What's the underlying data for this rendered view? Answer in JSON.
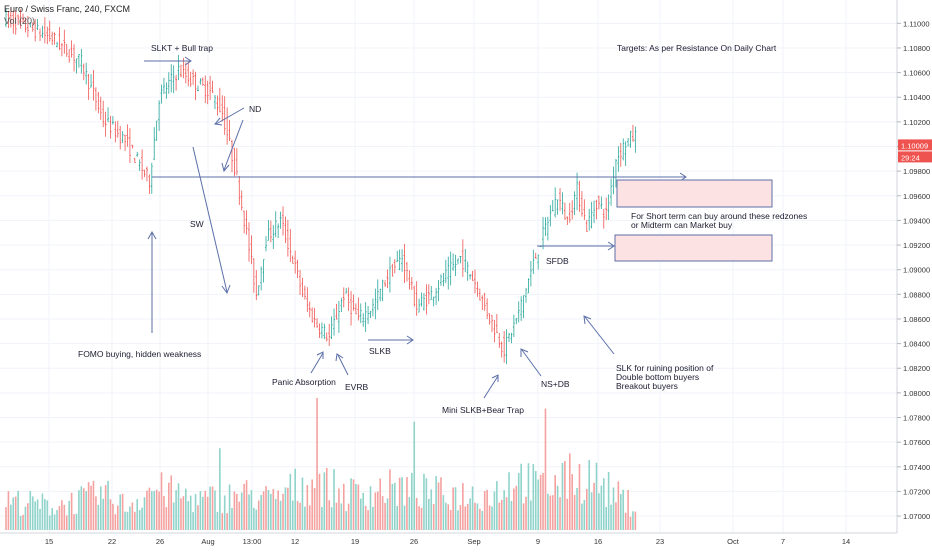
{
  "header": {
    "symbol_line": "Euro / Swiss Franc, 240, FXCM",
    "volume_indicator": "Vol (20)"
  },
  "price_label": {
    "last": "1.10009",
    "countdown": "29:24",
    "last_color": "#ef5350",
    "countdown_color": "#ef5350"
  },
  "chart_data": {
    "type": "candlestick",
    "title": "",
    "x_ticks": [
      "15",
      "22",
      "26",
      "Aug",
      "13:00",
      "12",
      "19",
      "26",
      "Sep",
      "9",
      "16",
      "23",
      "Oct",
      "7",
      "14"
    ],
    "y_ticks": [
      "1.11000",
      "1.10800",
      "1.10600",
      "1.10400",
      "1.10200",
      "1.10000",
      "1.09800",
      "1.09600",
      "1.09400",
      "1.09200",
      "1.09000",
      "1.08800",
      "1.08600",
      "1.08400",
      "1.08200",
      "1.08000",
      "1.07800",
      "1.07600",
      "1.07400",
      "1.07200",
      "1.07000"
    ],
    "ylim": [
      1.0693,
      1.1113
    ],
    "grid": true,
    "price_path": [
      [
        0,
        1.1105
      ],
      [
        12,
        1.1095
      ],
      [
        20,
        1.1088
      ],
      [
        32,
        1.1068
      ],
      [
        41,
        1.1022
      ],
      [
        50,
        1.1005
      ],
      [
        56,
        1.0985
      ],
      [
        60,
        1.0972
      ],
      [
        64,
        1.104
      ],
      [
        72,
        1.1062
      ],
      [
        80,
        1.105
      ],
      [
        85,
        1.1045
      ],
      [
        90,
        1.1028
      ],
      [
        96,
        1.0975
      ],
      [
        100,
        1.093
      ],
      [
        104,
        1.088
      ],
      [
        108,
        1.0925
      ],
      [
        114,
        1.094
      ],
      [
        118,
        1.0915
      ],
      [
        124,
        1.0875
      ],
      [
        128,
        1.0858
      ],
      [
        134,
        1.0845
      ],
      [
        140,
        1.088
      ],
      [
        146,
        1.086
      ],
      [
        152,
        1.087
      ],
      [
        158,
        1.0895
      ],
      [
        164,
        1.091
      ],
      [
        170,
        1.087
      ],
      [
        176,
        1.088
      ],
      [
        182,
        1.0895
      ],
      [
        188,
        1.091
      ],
      [
        194,
        1.089
      ],
      [
        198,
        1.087
      ],
      [
        206,
        1.0835
      ],
      [
        212,
        1.0865
      ],
      [
        218,
        1.0905
      ],
      [
        224,
        1.094
      ],
      [
        228,
        1.096
      ],
      [
        232,
        1.094
      ],
      [
        236,
        1.0965
      ],
      [
        240,
        1.0935
      ],
      [
        244,
        1.0955
      ],
      [
        248,
        1.0945
      ],
      [
        252,
        1.099
      ],
      [
        256,
        1.1003
      ],
      [
        259,
        1.1008
      ]
    ],
    "volume_path": [
      [
        0,
        0.25
      ],
      [
        20,
        0.2
      ],
      [
        40,
        0.3
      ],
      [
        50,
        0.2
      ],
      [
        60,
        0.35
      ],
      [
        80,
        0.25
      ],
      [
        100,
        0.3
      ],
      [
        110,
        0.25
      ],
      [
        118,
        0.35
      ],
      [
        128,
        0.4
      ],
      [
        140,
        0.3
      ],
      [
        160,
        0.35
      ],
      [
        180,
        0.3
      ],
      [
        200,
        0.3
      ],
      [
        210,
        0.45
      ],
      [
        220,
        0.35
      ],
      [
        232,
        0.4
      ],
      [
        240,
        0.45
      ],
      [
        250,
        0.3
      ],
      [
        259,
        0.2
      ]
    ],
    "volume_spikes": [
      [
        128,
        1.0
      ],
      [
        168,
        0.82
      ],
      [
        222,
        0.92
      ],
      [
        232,
        0.58
      ],
      [
        88,
        0.62
      ]
    ],
    "resistance_line": 1.097,
    "zones": [
      {
        "from": 1.0968,
        "to": 1.0948,
        "x_from": 617,
        "x_to": 772
      },
      {
        "from": 1.0925,
        "to": 1.0904,
        "x_from": 615,
        "x_to": 772
      }
    ],
    "annotations": {
      "slkt": "SLKT + Bull trap",
      "nd": "ND",
      "sw": "SW",
      "fomo": "FOMO buying, hidden weakness",
      "panic": "Panic Absorption",
      "evrb": "EVRB",
      "slkb": "SLKB",
      "mini": "Mini SLKB+Bear Trap",
      "nsdb": "NS+DB",
      "sfdb": "SFDB",
      "targets": "Targets: As per Resistance On Daily Chart",
      "short_term_1": "For Short term can buy around these redzones",
      "short_term_2": "or Midterm can Market buy",
      "slk_1": "SLK for ruining position of",
      "slk_2": "Double bottom buyers",
      "slk_3": "Breakout buyers"
    }
  },
  "colors": {
    "bull": "#26a69a",
    "bear": "#ef5350",
    "vol_bull": "#8fd3ca",
    "vol_bear": "#f4a19f",
    "line": "#5b6fa8",
    "zone_fill": "#fde2e4",
    "zone_edge": "#5b6fa8",
    "grid": "#f0f3fa",
    "axis_text": "#333333"
  }
}
